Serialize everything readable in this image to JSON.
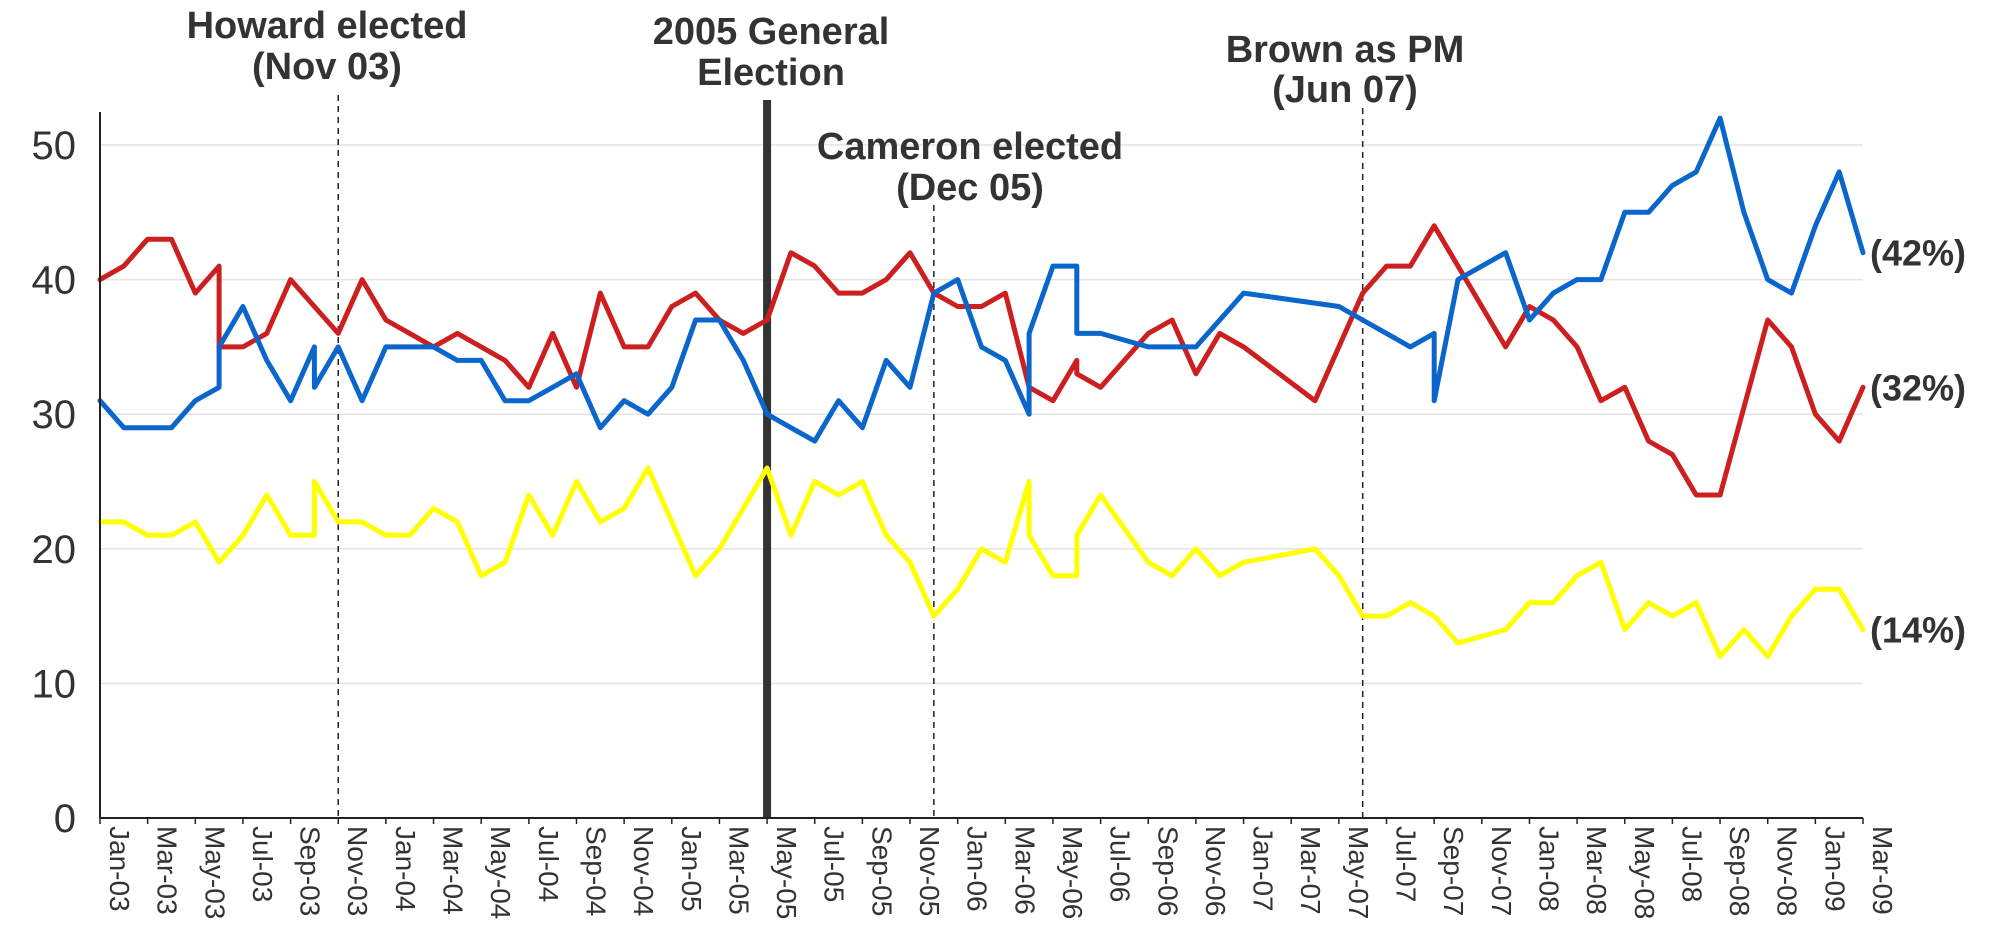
{
  "chart_data": {
    "type": "line",
    "title": "",
    "xlabel": "",
    "ylabel": "",
    "ylim": [
      0,
      53
    ],
    "yticks": [
      0,
      10,
      20,
      30,
      40,
      50
    ],
    "grid": true,
    "x_tick_labels": [
      "Jan-03",
      "Mar-03",
      "May-03",
      "Jul-03",
      "Sep-03",
      "Nov-03",
      "Jan-04",
      "Mar-04",
      "May-04",
      "Jul-04",
      "Sep-04",
      "Nov-04",
      "Jan-05",
      "Mar-05",
      "May-05",
      "Jul-05",
      "Sep-05",
      "Nov-05",
      "Jan-06",
      "Mar-06",
      "May-06",
      "Jul-06",
      "Sep-06",
      "Nov-06",
      "Jan-07",
      "Mar-07",
      "May-07",
      "Jul-07",
      "Sep-07",
      "Nov-07",
      "Jan-08",
      "Mar-08",
      "May-08",
      "Jul-08",
      "Sep-08",
      "Nov-08",
      "Jan-09",
      "Mar-09"
    ],
    "series": [
      {
        "color": "#CC2020",
        "end_label": "(32%)",
        "points": [
          [
            "Jan-03",
            40
          ],
          [
            "Feb-03",
            41
          ],
          [
            "Mar-03",
            43
          ],
          [
            "Apr-03",
            43
          ],
          [
            "May-03",
            39
          ],
          [
            "Jun-03",
            41
          ],
          [
            "Jun-03",
            35
          ],
          [
            "Jul-03",
            35
          ],
          [
            "Aug-03",
            36
          ],
          [
            "Sep-03",
            40
          ],
          [
            "Oct-03",
            38
          ],
          [
            "Nov-03",
            36
          ],
          [
            "Dec-03",
            40
          ],
          [
            "Jan-04",
            37
          ],
          [
            "Feb-04",
            36
          ],
          [
            "Mar-04",
            35
          ],
          [
            "Apr-04",
            36
          ],
          [
            "May-04",
            35
          ],
          [
            "Jun-04",
            34
          ],
          [
            "Jul-04",
            32
          ],
          [
            "Aug-04",
            36
          ],
          [
            "Sep-04",
            32
          ],
          [
            "Oct-04",
            39
          ],
          [
            "Nov-04",
            35
          ],
          [
            "Dec-04",
            35
          ],
          [
            "Jan-05",
            38
          ],
          [
            "Feb-05",
            39
          ],
          [
            "Mar-05",
            37
          ],
          [
            "Apr-05",
            36
          ],
          [
            "May-05",
            37
          ],
          [
            "Jun-05",
            42
          ],
          [
            "Jul-05",
            41
          ],
          [
            "Aug-05",
            39
          ],
          [
            "Sep-05",
            39
          ],
          [
            "Oct-05",
            40
          ],
          [
            "Nov-05",
            42
          ],
          [
            "Dec-05",
            39
          ],
          [
            "Jan-06",
            38
          ],
          [
            "Feb-06",
            38
          ],
          [
            "Mar-06",
            39
          ],
          [
            "Apr-06",
            32
          ],
          [
            "May-06",
            31
          ],
          [
            "Jun-06",
            34
          ],
          [
            "Jun-06",
            33
          ],
          [
            "Jul-06",
            32
          ],
          [
            "Sep-06",
            36
          ],
          [
            "Oct-06",
            37
          ],
          [
            "Nov-06",
            33
          ],
          [
            "Dec-06",
            36
          ],
          [
            "Jan-07",
            35
          ],
          [
            "Apr-07",
            31
          ],
          [
            "Jun-07",
            39
          ],
          [
            "Jul-07",
            41
          ],
          [
            "Aug-07",
            41
          ],
          [
            "Sep-07",
            44
          ],
          [
            "Oct-07",
            41
          ],
          [
            "Dec-07",
            35
          ],
          [
            "Jan-08",
            38
          ],
          [
            "Feb-08",
            37
          ],
          [
            "Mar-08",
            35
          ],
          [
            "Apr-08",
            31
          ],
          [
            "May-08",
            32
          ],
          [
            "Jun-08",
            28
          ],
          [
            "Jul-08",
            27
          ],
          [
            "Aug-08",
            24
          ],
          [
            "Sep-08",
            24
          ],
          [
            "Nov-08",
            37
          ],
          [
            "Dec-08",
            35
          ],
          [
            "Jan-09",
            30
          ],
          [
            "Feb-09",
            28
          ],
          [
            "Mar-09",
            32
          ]
        ]
      },
      {
        "color": "#0B66CC",
        "end_label": "(42%)",
        "points": [
          [
            "Jan-03",
            31
          ],
          [
            "Feb-03",
            29
          ],
          [
            "Mar-03",
            29
          ],
          [
            "Apr-03",
            29
          ],
          [
            "May-03",
            31
          ],
          [
            "Jun-03",
            32
          ],
          [
            "Jun-03",
            35
          ],
          [
            "Jul-03",
            38
          ],
          [
            "Aug-03",
            34
          ],
          [
            "Sep-03",
            31
          ],
          [
            "Oct-03",
            35
          ],
          [
            "Oct-03",
            32
          ],
          [
            "Nov-03",
            35
          ],
          [
            "Dec-03",
            31
          ],
          [
            "Jan-04",
            35
          ],
          [
            "Feb-04",
            35
          ],
          [
            "Mar-04",
            35
          ],
          [
            "Apr-04",
            34
          ],
          [
            "May-04",
            34
          ],
          [
            "Jun-04",
            31
          ],
          [
            "Jul-04",
            31
          ],
          [
            "Aug-04",
            32
          ],
          [
            "Sep-04",
            33
          ],
          [
            "Oct-04",
            29
          ],
          [
            "Nov-04",
            31
          ],
          [
            "Dec-04",
            30
          ],
          [
            "Jan-05",
            32
          ],
          [
            "Feb-05",
            37
          ],
          [
            "Mar-05",
            37
          ],
          [
            "Apr-05",
            34
          ],
          [
            "May-05",
            30
          ],
          [
            "Jun-05",
            29
          ],
          [
            "Jul-05",
            28
          ],
          [
            "Aug-05",
            31
          ],
          [
            "Sep-05",
            29
          ],
          [
            "Oct-05",
            34
          ],
          [
            "Nov-05",
            32
          ],
          [
            "Dec-05",
            39
          ],
          [
            "Jan-06",
            40
          ],
          [
            "Feb-06",
            35
          ],
          [
            "Mar-06",
            34
          ],
          [
            "Apr-06",
            30
          ],
          [
            "Apr-06",
            36
          ],
          [
            "May-06",
            41
          ],
          [
            "Jun-06",
            41
          ],
          [
            "Jun-06",
            36
          ],
          [
            "Jul-06",
            36
          ],
          [
            "Sep-06",
            35
          ],
          [
            "Nov-06",
            35
          ],
          [
            "Jan-07",
            39
          ],
          [
            "May-07",
            38
          ],
          [
            "Jun-07",
            37
          ],
          [
            "Jul-07",
            36
          ],
          [
            "Aug-07",
            35
          ],
          [
            "Sep-07",
            36
          ],
          [
            "Sep-07",
            31
          ],
          [
            "Oct-07",
            40
          ],
          [
            "Dec-07",
            42
          ],
          [
            "Jan-08",
            37
          ],
          [
            "Feb-08",
            39
          ],
          [
            "Mar-08",
            40
          ],
          [
            "Apr-08",
            40
          ],
          [
            "May-08",
            45
          ],
          [
            "Jun-08",
            45
          ],
          [
            "Jul-08",
            47
          ],
          [
            "Aug-08",
            48
          ],
          [
            "Sep-08",
            52
          ],
          [
            "Oct-08",
            45
          ],
          [
            "Nov-08",
            40
          ],
          [
            "Dec-08",
            39
          ],
          [
            "Jan-09",
            44
          ],
          [
            "Feb-09",
            48
          ],
          [
            "Mar-09",
            42
          ]
        ]
      },
      {
        "color": "#FFFF00",
        "end_label": "(14%)",
        "points": [
          [
            "Jan-03",
            22
          ],
          [
            "Feb-03",
            22
          ],
          [
            "Mar-03",
            21
          ],
          [
            "Apr-03",
            21
          ],
          [
            "May-03",
            22
          ],
          [
            "Jun-03",
            19
          ],
          [
            "Jul-03",
            21
          ],
          [
            "Aug-03",
            24
          ],
          [
            "Sep-03",
            21
          ],
          [
            "Oct-03",
            21
          ],
          [
            "Oct-03",
            25
          ],
          [
            "Nov-03",
            22
          ],
          [
            "Dec-03",
            22
          ],
          [
            "Jan-04",
            21
          ],
          [
            "Feb-04",
            21
          ],
          [
            "Mar-04",
            23
          ],
          [
            "Apr-04",
            22
          ],
          [
            "May-04",
            18
          ],
          [
            "Jun-04",
            19
          ],
          [
            "Jul-04",
            24
          ],
          [
            "Aug-04",
            21
          ],
          [
            "Sep-04",
            25
          ],
          [
            "Oct-04",
            22
          ],
          [
            "Nov-04",
            23
          ],
          [
            "Dec-04",
            26
          ],
          [
            "Feb-05",
            18
          ],
          [
            "Mar-05",
            20
          ],
          [
            "May-05",
            26
          ],
          [
            "Jun-05",
            21
          ],
          [
            "Jul-05",
            25
          ],
          [
            "Aug-05",
            24
          ],
          [
            "Sep-05",
            25
          ],
          [
            "Oct-05",
            21
          ],
          [
            "Nov-05",
            19
          ],
          [
            "Dec-05",
            15
          ],
          [
            "Jan-06",
            17
          ],
          [
            "Feb-06",
            20
          ],
          [
            "Mar-06",
            19
          ],
          [
            "Apr-06",
            25
          ],
          [
            "Apr-06",
            21
          ],
          [
            "May-06",
            18
          ],
          [
            "Jun-06",
            18
          ],
          [
            "Jun-06",
            21
          ],
          [
            "Jul-06",
            24
          ],
          [
            "Sep-06",
            19
          ],
          [
            "Oct-06",
            18
          ],
          [
            "Nov-06",
            20
          ],
          [
            "Dec-06",
            18
          ],
          [
            "Jan-07",
            19
          ],
          [
            "Apr-07",
            20
          ],
          [
            "May-07",
            18
          ],
          [
            "Jun-07",
            15
          ],
          [
            "Jul-07",
            15
          ],
          [
            "Aug-07",
            16
          ],
          [
            "Sep-07",
            15
          ],
          [
            "Oct-07",
            13
          ],
          [
            "Dec-07",
            14
          ],
          [
            "Jan-08",
            16
          ],
          [
            "Feb-08",
            16
          ],
          [
            "Mar-08",
            18
          ],
          [
            "Apr-08",
            19
          ],
          [
            "May-08",
            14
          ],
          [
            "Jun-08",
            16
          ],
          [
            "Jul-08",
            15
          ],
          [
            "Aug-08",
            16
          ],
          [
            "Sep-08",
            12
          ],
          [
            "Oct-08",
            14
          ],
          [
            "Nov-08",
            12
          ],
          [
            "Dec-08",
            15
          ],
          [
            "Jan-09",
            17
          ],
          [
            "Feb-09",
            17
          ],
          [
            "Mar-09",
            14
          ]
        ]
      }
    ],
    "annotations": [
      {
        "lines": [
          "Howard elected",
          "(Nov 03)"
        ],
        "at": "Nov-03",
        "style": "dashed"
      },
      {
        "lines": [
          "2005 General",
          "Election"
        ],
        "at": "May-05",
        "style": "solid"
      },
      {
        "lines": [
          "Cameron elected",
          "(Dec 05)"
        ],
        "at": "Dec-05",
        "style": "dashed"
      },
      {
        "lines": [
          "Brown as PM",
          "(Jun 07)"
        ],
        "at": "Jun-07",
        "style": "dashed"
      }
    ]
  }
}
